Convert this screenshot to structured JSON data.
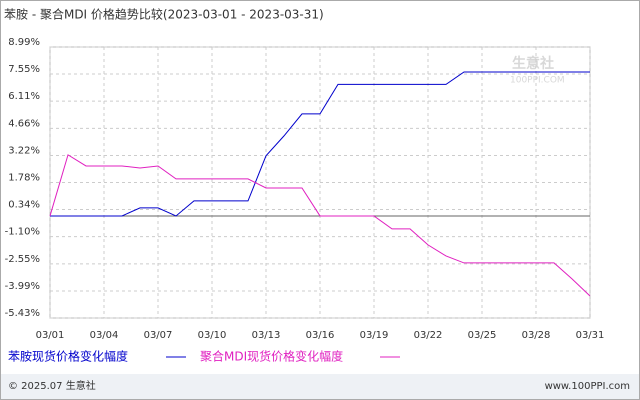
{
  "chart_data": {
    "type": "line",
    "title": "苯胺 - 聚合MDI 价格趋势比较(2023-03-01 - 2023-03-31)",
    "categories": [
      "03/01",
      null,
      null,
      "03/04",
      null,
      null,
      "03/07",
      null,
      null,
      "03/10",
      null,
      null,
      "03/13",
      null,
      null,
      "03/16",
      null,
      null,
      "03/19",
      null,
      null,
      "03/22",
      null,
      null,
      "03/25",
      null,
      null,
      "03/28",
      null,
      null,
      "03/31"
    ],
    "series": [
      {
        "name": "苯胺现货价格变化幅度",
        "color": "#0000cc",
        "values": [
          0,
          0,
          0,
          0,
          0,
          0.43,
          0.43,
          0,
          0.8,
          0.8,
          0.8,
          0.8,
          3.2,
          4.26,
          5.43,
          5.43,
          7.0,
          7.0,
          7.0,
          7.0,
          7.0,
          7.0,
          7.0,
          7.66,
          7.66,
          7.66,
          7.66,
          7.66,
          7.66,
          7.66,
          7.66
        ]
      },
      {
        "name": "聚合MDI现货价格变化幅度",
        "color": "#e020c0",
        "values": [
          0,
          3.25,
          2.66,
          2.66,
          2.66,
          2.55,
          2.66,
          1.97,
          1.97,
          1.97,
          1.97,
          1.97,
          1.49,
          1.49,
          1.49,
          0,
          0,
          0,
          0,
          -0.69,
          -0.69,
          -1.54,
          -2.13,
          -2.5,
          -2.5,
          -2.5,
          -2.5,
          -2.5,
          -2.5,
          -3.35,
          -4.26
        ]
      }
    ],
    "ylim": [
      -5.43,
      8.99
    ],
    "yticks": [
      {
        "value": 8.99,
        "label": "8.99%"
      },
      {
        "value": 7.55,
        "label": "7.55%"
      },
      {
        "value": 6.11,
        "label": "6.11%"
      },
      {
        "value": 4.66,
        "label": "4.66%"
      },
      {
        "value": 3.22,
        "label": "3.22%"
      },
      {
        "value": 1.78,
        "label": "1.78%"
      },
      {
        "value": 0.34,
        "label": "0.34%"
      },
      {
        "value": -1.1,
        "label": "-1.10%"
      },
      {
        "value": -2.55,
        "label": "-2.55%"
      },
      {
        "value": -3.99,
        "label": "-3.99%"
      },
      {
        "value": -5.43,
        "label": "-5.43%"
      }
    ],
    "grid": true
  },
  "watermark": {
    "name": "生意社",
    "site": "100PPI.COM"
  },
  "footer": {
    "copyright": "© 2025.07 生意社",
    "site": "www.100PPI.com"
  }
}
